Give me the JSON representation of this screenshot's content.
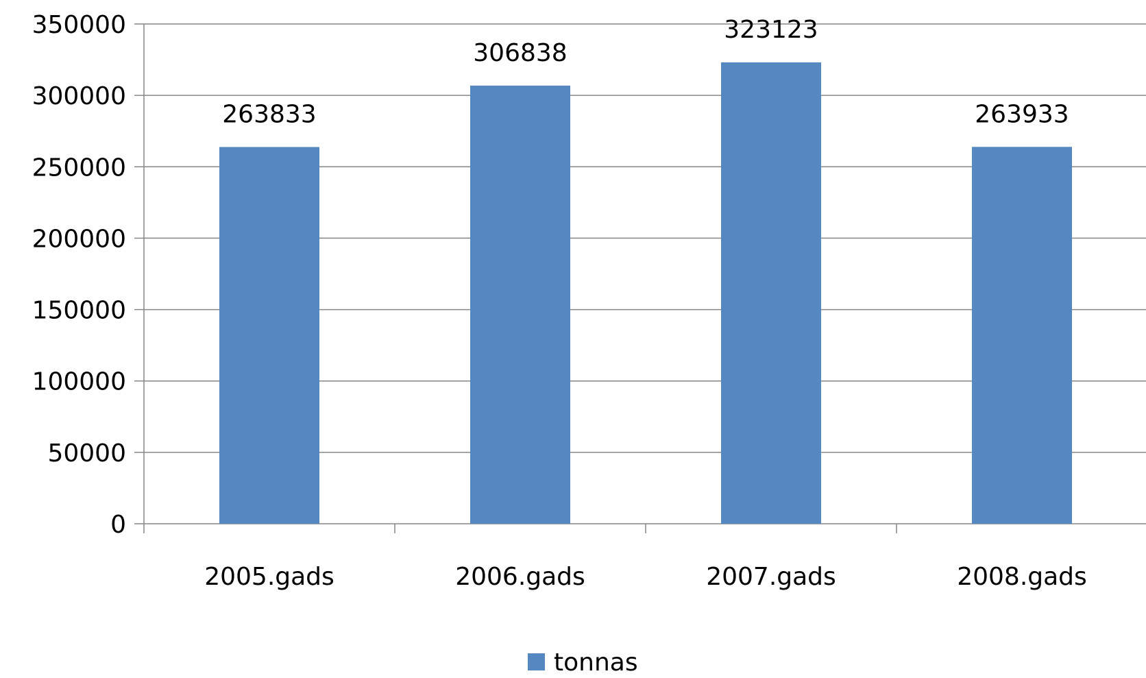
{
  "chart_data": {
    "type": "bar",
    "categories": [
      "2005.gads",
      "2006.gads",
      "2007.gads",
      "2008.gads"
    ],
    "series": [
      {
        "name": "tonnas",
        "values": [
          263833,
          306838,
          323123,
          263933
        ],
        "color": "#5587C1"
      }
    ],
    "title": "",
    "xlabel": "",
    "ylabel": "",
    "ylim": [
      0,
      350000
    ],
    "yticks": [
      0,
      50000,
      100000,
      150000,
      200000,
      250000,
      300000,
      350000
    ],
    "grid": true,
    "data_labels": true,
    "legend_position": "bottom"
  }
}
